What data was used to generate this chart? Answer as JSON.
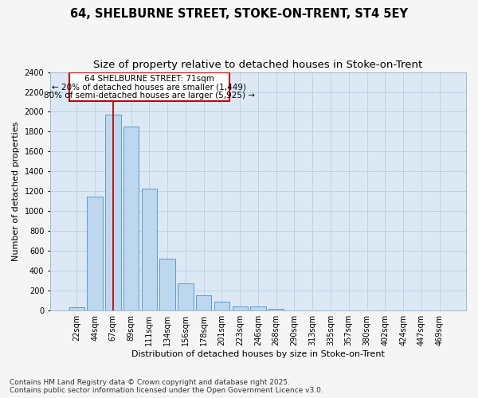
{
  "title_line1": "64, SHELBURNE STREET, STOKE-ON-TRENT, ST4 5EY",
  "title_line2": "Size of property relative to detached houses in Stoke-on-Trent",
  "xlabel": "Distribution of detached houses by size in Stoke-on-Trent",
  "ylabel": "Number of detached properties",
  "categories": [
    "22sqm",
    "44sqm",
    "67sqm",
    "89sqm",
    "111sqm",
    "134sqm",
    "156sqm",
    "178sqm",
    "201sqm",
    "223sqm",
    "246sqm",
    "268sqm",
    "290sqm",
    "313sqm",
    "335sqm",
    "357sqm",
    "380sqm",
    "402sqm",
    "424sqm",
    "447sqm",
    "469sqm"
  ],
  "values": [
    30,
    1150,
    1970,
    1850,
    1230,
    520,
    275,
    150,
    90,
    45,
    40,
    15,
    5,
    5,
    3,
    2,
    1,
    1,
    1,
    1,
    1
  ],
  "bar_color": "#bdd7ee",
  "bar_edge_color": "#5b9bd5",
  "vline_x_index": 2,
  "vline_color": "#cc0000",
  "annotation_text": "64 SHELBURNE STREET: 71sqm\n← 20% of detached houses are smaller (1,449)\n80% of semi-detached houses are larger (5,925) →",
  "annotation_box_facecolor": "#ffffff",
  "annotation_box_edgecolor": "#cc0000",
  "ylim": [
    0,
    2400
  ],
  "yticks": [
    0,
    200,
    400,
    600,
    800,
    1000,
    1200,
    1400,
    1600,
    1800,
    2000,
    2200,
    2400
  ],
  "grid_color": "#b8cfe0",
  "plot_bg_color": "#dce9f5",
  "fig_bg_color": "#f5f5f5",
  "footnote": "Contains HM Land Registry data © Crown copyright and database right 2025.\nContains public sector information licensed under the Open Government Licence v3.0.",
  "title_fontsize": 10.5,
  "subtitle_fontsize": 9.5,
  "label_fontsize": 8,
  "tick_fontsize": 7,
  "annot_fontsize": 7.5,
  "footnote_fontsize": 6.5
}
